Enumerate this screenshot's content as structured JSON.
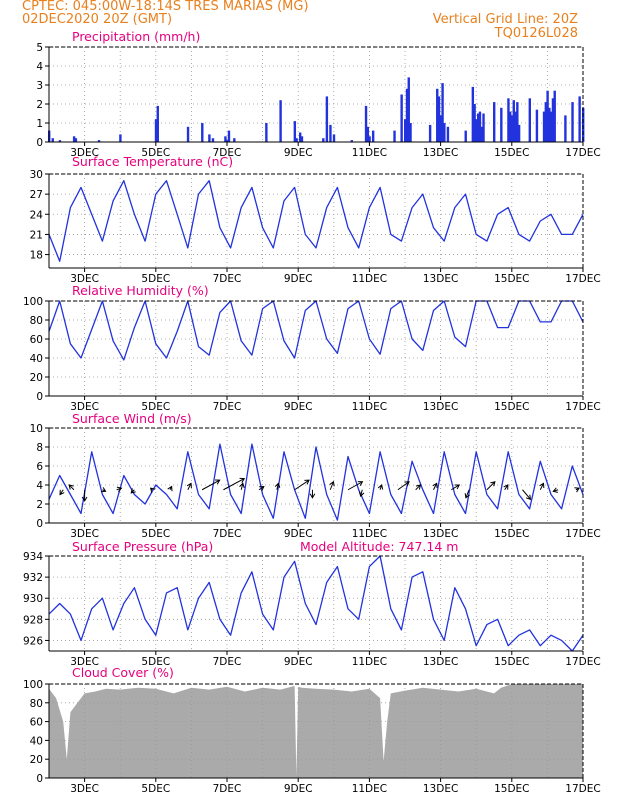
{
  "header": {
    "line1_left": "CPTEC:   045:00W-18:14S   TRES MARIAS (MG)",
    "line2_left": "02DEC2020 20Z (GMT)",
    "line1_right": "Vertical Grid Line: 20Z",
    "line2_right": "TQ0126L028"
  },
  "colors": {
    "header": "#e8801e",
    "title": "#e6007e",
    "series": "#2233dd",
    "wind_arrow": "#000000",
    "cloud_fill": "#aaaaaa",
    "grid": "#999999"
  },
  "x_axis": {
    "start": "02DEC2020 20Z",
    "ticks": [
      "3DEC",
      "5DEC",
      "7DEC",
      "9DEC",
      "11DEC",
      "13DEC",
      "15DEC",
      "17DEC"
    ],
    "tick_days": [
      1,
      3,
      5,
      7,
      9,
      11,
      13,
      15
    ],
    "range_days": [
      0,
      15
    ],
    "grid": "dotted vertical lines at 20Z each day"
  },
  "chart_data": [
    {
      "type": "bar",
      "title": "Precipitation (mm/h)",
      "ylim": [
        0,
        5
      ],
      "yticks": [
        0,
        1,
        2,
        3,
        4,
        5
      ],
      "x_days": [
        0.0,
        0.1,
        0.3,
        0.5,
        0.7,
        0.75,
        0.9,
        1.4,
        1.8,
        2.0,
        2.6,
        3.0,
        3.05,
        3.9,
        4.2,
        4.3,
        4.5,
        4.6,
        4.95,
        5.0,
        5.05,
        5.1,
        5.2,
        5.3,
        5.5,
        5.8,
        6.1,
        6.5,
        6.9,
        6.95,
        7.0,
        7.05,
        7.1,
        7.3,
        7.7,
        7.8,
        7.9,
        8.0,
        8.1,
        8.5,
        8.7,
        8.9,
        8.95,
        9.0,
        9.05,
        9.1,
        9.5,
        9.7,
        9.9,
        10.0,
        10.05,
        10.1,
        10.15,
        10.5,
        10.7,
        10.9,
        10.95,
        11.0,
        11.05,
        11.1,
        11.15,
        11.2,
        11.5,
        11.7,
        11.9,
        11.95,
        12.0,
        12.05,
        12.1,
        12.15,
        12.2,
        12.5,
        12.7,
        12.9,
        12.95,
        13.0,
        13.05,
        13.1,
        13.15,
        13.2,
        13.5,
        13.7,
        13.9,
        13.95,
        14.0,
        14.05,
        14.1,
        14.15,
        14.2,
        14.5,
        14.7,
        14.9,
        15.0
      ],
      "values": [
        0.6,
        0.2,
        0.1,
        0.0,
        0.3,
        0.2,
        0.0,
        0.1,
        0.0,
        0.4,
        0.0,
        1.2,
        1.9,
        0.8,
        0.0,
        1.0,
        0.4,
        0.2,
        0.3,
        0.1,
        0.6,
        0.0,
        0.2,
        0.0,
        0.0,
        0.0,
        1.0,
        2.2,
        1.1,
        0.2,
        0.0,
        0.5,
        0.3,
        0.0,
        0.2,
        2.4,
        0.9,
        0.4,
        0.0,
        0.1,
        0.0,
        1.9,
        0.8,
        0.3,
        0.0,
        0.6,
        0.0,
        0.6,
        2.5,
        1.2,
        2.8,
        3.4,
        1.0,
        0.0,
        0.9,
        2.8,
        2.4,
        1.4,
        3.1,
        1.0,
        0.0,
        0.8,
        0.0,
        0.6,
        2.9,
        2.0,
        1.2,
        1.5,
        1.6,
        0.8,
        1.5,
        2.1,
        1.8,
        2.3,
        1.6,
        1.4,
        2.2,
        1.6,
        2.1,
        0.9,
        2.3,
        1.7,
        1.6,
        2.1,
        2.7,
        1.8,
        1.6,
        2.3,
        2.7,
        1.4,
        2.1,
        2.4,
        1.8
      ]
    },
    {
      "type": "line",
      "title": "Surface Temperature (nC)",
      "ylim": [
        16,
        30
      ],
      "yticks": [
        18,
        21,
        24,
        27,
        30
      ],
      "x_days": [
        0.0,
        0.3,
        0.6,
        0.9,
        1.2,
        1.5,
        1.8,
        2.1,
        2.4,
        2.7,
        3.0,
        3.3,
        3.6,
        3.9,
        4.2,
        4.5,
        4.8,
        5.1,
        5.4,
        5.7,
        6.0,
        6.3,
        6.6,
        6.9,
        7.2,
        7.5,
        7.8,
        8.1,
        8.4,
        8.7,
        9.0,
        9.3,
        9.6,
        9.9,
        10.2,
        10.5,
        10.8,
        11.1,
        11.4,
        11.7,
        12.0,
        12.3,
        12.6,
        12.9,
        13.2,
        13.5,
        13.8,
        14.1,
        14.4,
        14.7,
        15.0
      ],
      "values": [
        21,
        17,
        25,
        28,
        24,
        20,
        26,
        29,
        24,
        20,
        27,
        29,
        24,
        19,
        27,
        29,
        22,
        19,
        25,
        28,
        22,
        19,
        26,
        28,
        21,
        19,
        25,
        28,
        22,
        19,
        25,
        28,
        21,
        20,
        25,
        27,
        22,
        20,
        25,
        27,
        21,
        20,
        24,
        25,
        21,
        20,
        23,
        24,
        21,
        21,
        24
      ]
    },
    {
      "type": "line",
      "title": "Relative Humidity (%)",
      "ylim": [
        0,
        100
      ],
      "yticks": [
        0,
        20,
        40,
        60,
        80,
        100
      ],
      "x_days": [
        0.0,
        0.3,
        0.6,
        0.9,
        1.2,
        1.5,
        1.8,
        2.1,
        2.4,
        2.7,
        3.0,
        3.3,
        3.6,
        3.9,
        4.2,
        4.5,
        4.8,
        5.1,
        5.4,
        5.7,
        6.0,
        6.3,
        6.6,
        6.9,
        7.2,
        7.5,
        7.8,
        8.1,
        8.4,
        8.7,
        9.0,
        9.3,
        9.6,
        9.9,
        10.2,
        10.5,
        10.8,
        11.1,
        11.4,
        11.7,
        12.0,
        12.3,
        12.6,
        12.9,
        13.2,
        13.5,
        13.8,
        14.1,
        14.4,
        14.7,
        15.0
      ],
      "values": [
        68,
        100,
        55,
        40,
        70,
        100,
        58,
        38,
        72,
        100,
        55,
        40,
        68,
        100,
        52,
        43,
        88,
        100,
        58,
        43,
        92,
        100,
        58,
        40,
        90,
        100,
        60,
        45,
        92,
        100,
        60,
        44,
        92,
        100,
        60,
        48,
        90,
        100,
        62,
        52,
        100,
        100,
        72,
        72,
        100,
        100,
        78,
        78,
        100,
        100,
        78
      ]
    },
    {
      "type": "line",
      "title": "Surface Wind (m/s)",
      "ylim": [
        0,
        10
      ],
      "yticks": [
        0,
        2,
        4,
        6,
        8,
        10
      ],
      "x_days": [
        0.0,
        0.3,
        0.6,
        0.9,
        1.2,
        1.5,
        1.8,
        2.1,
        2.4,
        2.7,
        3.0,
        3.3,
        3.6,
        3.9,
        4.2,
        4.5,
        4.8,
        5.1,
        5.4,
        5.7,
        6.0,
        6.3,
        6.6,
        6.9,
        7.2,
        7.5,
        7.8,
        8.1,
        8.4,
        8.7,
        9.0,
        9.3,
        9.6,
        9.9,
        10.2,
        10.5,
        10.8,
        11.1,
        11.4,
        11.7,
        12.0,
        12.3,
        12.6,
        12.9,
        13.2,
        13.5,
        13.8,
        14.1,
        14.4,
        14.7,
        15.0
      ],
      "values": [
        2.5,
        5.0,
        3.0,
        1.0,
        7.5,
        3.0,
        1.0,
        5.0,
        3.0,
        2.0,
        4.0,
        3.0,
        1.5,
        7.5,
        3.0,
        1.5,
        8.3,
        3.0,
        1.0,
        8.3,
        3.0,
        0.5,
        7.5,
        3.5,
        0.5,
        8.0,
        3.0,
        0.3,
        7.0,
        3.5,
        1.0,
        7.5,
        3.0,
        1.0,
        6.5,
        3.5,
        1.0,
        7.5,
        3.0,
        1.0,
        7.5,
        3.0,
        1.5,
        7.5,
        3.0,
        1.5,
        6.5,
        3.0,
        1.5,
        6.0,
        3.0
      ],
      "arrows": {
        "x_days": [
          0.4,
          0.7,
          1.0,
          1.5,
          1.9,
          2.4,
          2.9,
          3.4,
          3.9,
          4.3,
          4.9,
          5.4,
          5.9,
          6.4,
          6.9,
          7.4,
          7.9,
          8.4,
          8.8,
          9.3,
          9.8,
          10.3,
          10.8,
          11.3,
          11.8,
          12.3,
          12.8,
          13.3,
          13.8,
          14.3,
          14.8
        ],
        "u": [
          -1.0,
          -1.5,
          0.0,
          1.0,
          1.5,
          -1.0,
          -0.5,
          0.5,
          1.0,
          5.5,
          6.5,
          0.5,
          1.5,
          0.5,
          4.5,
          0.0,
          1.0,
          4.5,
          -0.5,
          0.5,
          3.5,
          1.5,
          1.0,
          2.5,
          -1.0,
          2.5,
          1.0,
          2.5,
          1.0,
          -1.5,
          1.0
        ],
        "v": [
          -1.5,
          1.5,
          -3.5,
          -0.5,
          0.5,
          -1.0,
          0.5,
          1.0,
          2.0,
          3.0,
          3.5,
          2.0,
          1.0,
          2.0,
          3.0,
          -2.5,
          2.5,
          2.5,
          -2.0,
          1.5,
          2.5,
          1.5,
          2.0,
          1.5,
          -2.5,
          2.5,
          1.5,
          -3.0,
          2.0,
          -0.5,
          0.5
        ]
      }
    },
    {
      "type": "line",
      "title": "Surface Pressure (hPa)",
      "annotation": "Model Altitude: 747.14 m",
      "ylim": [
        925,
        934
      ],
      "yticks": [
        926,
        928,
        930,
        932,
        934
      ],
      "x_days": [
        0.0,
        0.3,
        0.6,
        0.9,
        1.2,
        1.5,
        1.8,
        2.1,
        2.4,
        2.7,
        3.0,
        3.3,
        3.6,
        3.9,
        4.2,
        4.5,
        4.8,
        5.1,
        5.4,
        5.7,
        6.0,
        6.3,
        6.6,
        6.9,
        7.2,
        7.5,
        7.8,
        8.1,
        8.4,
        8.7,
        9.0,
        9.3,
        9.6,
        9.9,
        10.2,
        10.5,
        10.8,
        11.1,
        11.4,
        11.7,
        12.0,
        12.3,
        12.6,
        12.9,
        13.2,
        13.5,
        13.8,
        14.1,
        14.4,
        14.7,
        15.0
      ],
      "values": [
        928.5,
        929.5,
        928.5,
        926.0,
        929.0,
        930.0,
        927.0,
        929.5,
        931.0,
        928.0,
        926.5,
        930.5,
        931.0,
        927.0,
        930.0,
        931.5,
        928.0,
        926.5,
        930.5,
        932.5,
        928.5,
        927.0,
        932.0,
        933.5,
        929.5,
        927.5,
        931.5,
        933.0,
        929.0,
        928.0,
        933.0,
        934.0,
        929.0,
        927.0,
        932.0,
        932.5,
        928.0,
        926.0,
        931.0,
        929.0,
        925.5,
        927.5,
        928.0,
        925.5,
        926.5,
        927.0,
        925.5,
        926.5,
        926.0,
        925.0,
        926.5
      ]
    },
    {
      "type": "area",
      "title": "Cloud Cover (%)",
      "ylim": [
        0,
        100
      ],
      "yticks": [
        0,
        20,
        40,
        60,
        80,
        100
      ],
      "x_days": [
        0.0,
        0.2,
        0.4,
        0.5,
        0.6,
        0.8,
        1.0,
        1.3,
        1.6,
        2.0,
        2.5,
        3.0,
        3.5,
        4.0,
        4.5,
        5.0,
        5.5,
        6.0,
        6.5,
        6.9,
        6.95,
        7.0,
        7.1,
        7.5,
        8.0,
        8.5,
        9.0,
        9.3,
        9.4,
        9.5,
        9.6,
        10.0,
        10.5,
        11.0,
        11.5,
        12.0,
        12.5,
        12.7,
        13.0,
        13.5,
        14.0,
        14.5,
        15.0
      ],
      "values": [
        95,
        85,
        60,
        20,
        70,
        80,
        90,
        92,
        95,
        94,
        96,
        95,
        90,
        96,
        94,
        97,
        92,
        96,
        94,
        98,
        2,
        97,
        96,
        95,
        94,
        92,
        95,
        85,
        18,
        60,
        90,
        93,
        96,
        94,
        92,
        95,
        90,
        96,
        100,
        100,
        100,
        100,
        100
      ]
    }
  ]
}
